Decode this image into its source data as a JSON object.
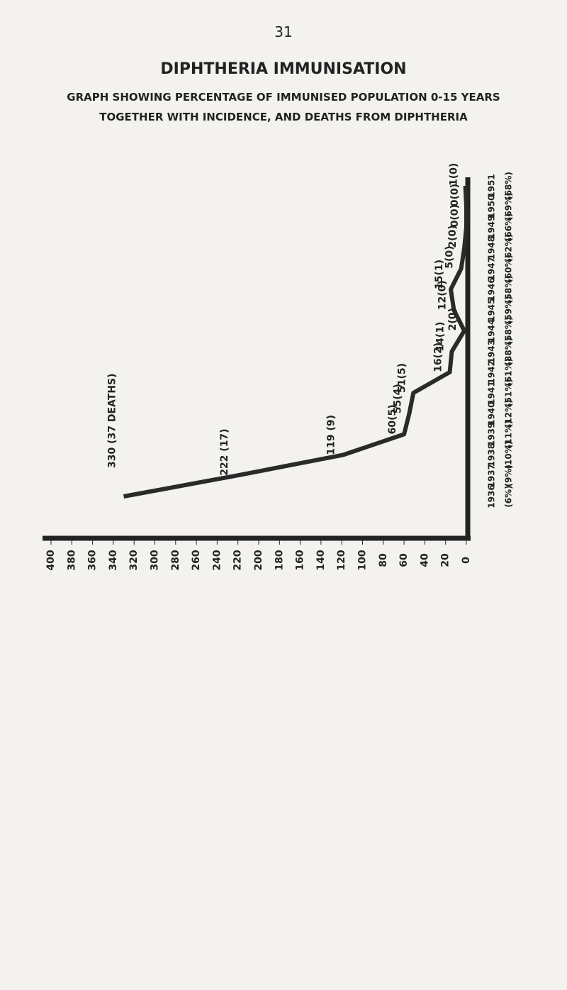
{
  "page_number": "31",
  "chart_data": {
    "type": "line",
    "title": "DIPHTHERIA IMMUNISATION",
    "subtitle": [
      "GRAPH SHOWING PERCENTAGE OF IMMUNISED POPULATION 0-15 YEARS",
      "TOGETHER WITH INCIDENCE, AND DEATHS FROM DIPHTHERIA"
    ],
    "categories": [
      "1936",
      "1937",
      "1938",
      "1939",
      "1940",
      "1941",
      "1942",
      "1943",
      "1944",
      "1945",
      "1946",
      "1947",
      "1948",
      "1949",
      "1950",
      "1951"
    ],
    "percent_labels": [
      "(6%)",
      "(9%)",
      "(10%)",
      "(11%)",
      "(12%)",
      "(51%)",
      "(61%)",
      "(88%)",
      "(58%)",
      "(59%)",
      "(58%)",
      "(60%)",
      "(62%)",
      "(66%)",
      "(69%)",
      "(68%)"
    ],
    "series": [
      {
        "color": "#2a2a2a",
        "values": [
          330,
          222,
          119,
          60,
          55,
          51,
          16,
          14,
          2,
          12,
          15,
          5,
          2,
          0,
          0,
          1
        ],
        "value_labels": [
          "330 (37 DEATHS)",
          "222 (17)",
          "119 (9)",
          "60(5)",
          "55(4)",
          "51(5)",
          "16(2)",
          "14(1)",
          "2(0)",
          "12(0)",
          "15(1)",
          "5(0)",
          "2(0)",
          "0(0)",
          "0(0)",
          "1(0)"
        ]
      }
    ],
    "ylim": [
      0,
      400
    ],
    "yticks": [
      400,
      380,
      360,
      340,
      320,
      300,
      280,
      260,
      240,
      220,
      200,
      180,
      160,
      140,
      120,
      100,
      80,
      60,
      40,
      20,
      0
    ]
  }
}
